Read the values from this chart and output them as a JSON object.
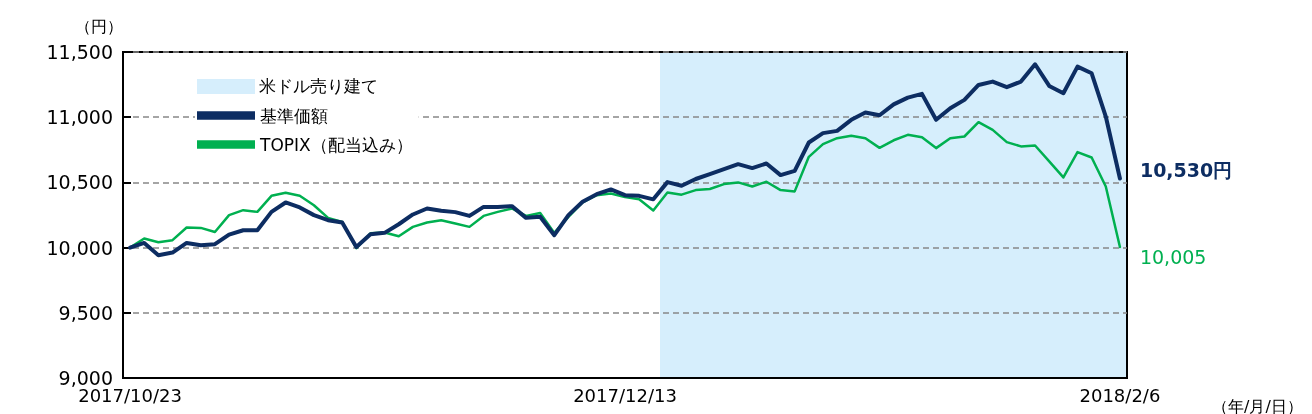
{
  "chart_data": {
    "type": "line",
    "categories": [
      "2017/10/23",
      null,
      null,
      null,
      null,
      null,
      null,
      null,
      null,
      null,
      null,
      null,
      null,
      null,
      null,
      null,
      null,
      null,
      null,
      null,
      null,
      null,
      null,
      null,
      null,
      null,
      null,
      null,
      null,
      null,
      null,
      null,
      null,
      null,
      null,
      "2017/12/13",
      null,
      null,
      null,
      null,
      null,
      null,
      null,
      null,
      null,
      null,
      null,
      null,
      null,
      null,
      null,
      null,
      null,
      null,
      null,
      null,
      null,
      null,
      null,
      null,
      null,
      null,
      null,
      null,
      null,
      null,
      null,
      null,
      null,
      null,
      "2018/2/6"
    ],
    "series": [
      {
        "name": "基準価額",
        "color": "#0d2d62",
        "values": [
          10000,
          10036,
          9942,
          9962,
          10036,
          10018,
          10026,
          10100,
          10133,
          10133,
          10274,
          10346,
          10308,
          10249,
          10210,
          10192,
          10005,
          10103,
          10113,
          10179,
          10254,
          10300,
          10282,
          10272,
          10243,
          10312,
          10312,
          10318,
          10228,
          10236,
          10095,
          10249,
          10351,
          10410,
          10446,
          10402,
          10397,
          10370,
          10502,
          10474,
          10526,
          10564,
          10602,
          10640,
          10610,
          10645,
          10556,
          10589,
          10806,
          10878,
          10895,
          10980,
          11036,
          11015,
          11098,
          11150,
          11179,
          10980,
          11069,
          11133,
          11247,
          11273,
          11230,
          11273,
          11406,
          11240,
          11184,
          11388,
          11337,
          11005,
          10530
        ],
        "value_labels": [
          null,
          null,
          null,
          null,
          null,
          null,
          null,
          null,
          null,
          null,
          null,
          null,
          null,
          null,
          null,
          null,
          null,
          null,
          null,
          null,
          null,
          null,
          null,
          null,
          null,
          null,
          null,
          null,
          null,
          null,
          null,
          null,
          null,
          null,
          null,
          null,
          null,
          null,
          null,
          null,
          null,
          null,
          null,
          null,
          null,
          null,
          null,
          null,
          null,
          null,
          null,
          null,
          null,
          null,
          null,
          null,
          null,
          null,
          null,
          null,
          null,
          null,
          null,
          null,
          null,
          null,
          null,
          null,
          null,
          null,
          "10,530円"
        ]
      },
      {
        "name": "TOPIX（配当込み）",
        "color": "#00b050",
        "values": [
          10000,
          10070,
          10041,
          10057,
          10154,
          10151,
          10120,
          10249,
          10287,
          10274,
          10397,
          10420,
          10397,
          10325,
          10228,
          10197,
          9995,
          10110,
          10116,
          10087,
          10159,
          10192,
          10210,
          10185,
          10159,
          10243,
          10274,
          10300,
          10243,
          10266,
          10113,
          10236,
          10346,
          10402,
          10415,
          10387,
          10371,
          10285,
          10422,
          10406,
          10441,
          10449,
          10487,
          10500,
          10469,
          10505,
          10441,
          10431,
          10696,
          10793,
          10839,
          10857,
          10839,
          10765,
          10823,
          10865,
          10847,
          10763,
          10839,
          10852,
          10962,
          10903,
          10809,
          10776,
          10783,
          10661,
          10538,
          10732,
          10691,
          10469,
          10005
        ],
        "value_labels": [
          null,
          null,
          null,
          null,
          null,
          null,
          null,
          null,
          null,
          null,
          null,
          null,
          null,
          null,
          null,
          null,
          null,
          null,
          null,
          null,
          null,
          null,
          null,
          null,
          null,
          null,
          null,
          null,
          null,
          null,
          null,
          null,
          null,
          null,
          null,
          null,
          null,
          null,
          null,
          null,
          null,
          null,
          null,
          null,
          null,
          null,
          null,
          null,
          null,
          null,
          null,
          null,
          null,
          null,
          null,
          null,
          null,
          null,
          null,
          null,
          null,
          null,
          null,
          null,
          null,
          null,
          null,
          null,
          null,
          null,
          "10,005"
        ]
      }
    ],
    "ylabel": "（円）",
    "xlabel": "（年/月/日）",
    "ylim": [
      9000,
      11500
    ],
    "yticks": [
      {
        "value": 9000,
        "label": "9,000"
      },
      {
        "value": 9500,
        "label": "9,500"
      },
      {
        "value": 10000,
        "label": "10,000"
      },
      {
        "value": 10500,
        "label": "10,500"
      },
      {
        "value": 11000,
        "label": "11,000"
      },
      {
        "value": 11500,
        "label": "11,500"
      }
    ],
    "annotations": [
      "米ドル売り建て"
    ],
    "grid": "y",
    "legend": "top left",
    "marker": "none",
    "line_style": "solid"
  }
}
